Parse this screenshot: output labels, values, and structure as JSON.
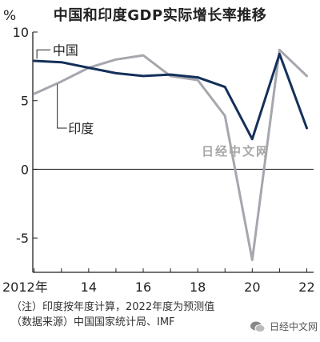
{
  "page_title": "中国和印度GDP实际增长率推移",
  "unit": "%",
  "notes": [
    "（注）印度按年度计算，2022年度为预测值",
    "（数据来源）中国国家统计局、IMF"
  ],
  "watermark_center": "日经中文网",
  "watermark_bottom": "日经中文网",
  "chart_data": {
    "type": "line",
    "title": "中国和印度GDP实际增长率推移",
    "ylabel": "%",
    "xlabel": "",
    "x": [
      2012,
      2013,
      2014,
      2015,
      2016,
      2017,
      2018,
      2019,
      2020,
      2021,
      2022
    ],
    "x_tick_values": [
      2012,
      2014,
      2016,
      2018,
      2020,
      2022
    ],
    "x_tick_labels": [
      "2012年",
      "14",
      "16",
      "18",
      "20",
      "22"
    ],
    "ylim": [
      -7.5,
      10
    ],
    "y_ticks": [
      10,
      5,
      0,
      -5
    ],
    "y_tick_labels": [
      "10",
      "5",
      "0",
      "-5"
    ],
    "grid": false,
    "legend": "inline labels",
    "series": [
      {
        "name": "中国",
        "color": "#14305a",
        "values": [
          7.9,
          7.8,
          7.4,
          7.0,
          6.8,
          6.9,
          6.7,
          6.0,
          2.2,
          8.4,
          3.0
        ]
      },
      {
        "name": "印度",
        "color": "#a6a6ae",
        "values": [
          5.5,
          6.4,
          7.4,
          8.0,
          8.3,
          6.8,
          6.5,
          3.9,
          -6.6,
          8.7,
          6.8
        ]
      }
    ]
  }
}
